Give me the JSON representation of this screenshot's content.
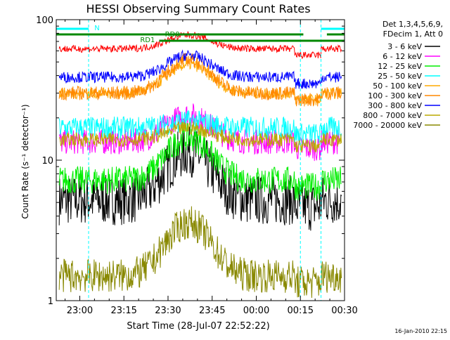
{
  "chart_data": {
    "type": "line",
    "title": "HESSI Observing Summary Count Rates",
    "xlabel": "Start Time (28-Jul-07 22:52:22)",
    "ylabel": "Count Rate (s⁻¹ detector⁻¹)",
    "yscale": "log",
    "ylim": [
      1,
      100
    ],
    "xlim_minutes_after_23_00": [
      -8,
      33
    ],
    "x_ticks": [
      {
        "t": 0,
        "label": "23:00"
      },
      {
        "t": 15,
        "label": "23:15"
      },
      {
        "t": 30,
        "label": "23:30"
      },
      {
        "t": 45,
        "label": "23:45"
      },
      {
        "t": 60,
        "label": "00:00"
      },
      {
        "t": 75,
        "label": "00:15"
      },
      {
        "t": 90,
        "label": "00:30"
      }
    ],
    "y_ticks": [
      {
        "v": 1,
        "label": "1"
      },
      {
        "v": 10,
        "label": "10"
      },
      {
        "v": 100,
        "label": "100"
      }
    ],
    "legend_header": [
      "Det 1,3,4,5,6,9,",
      "FDecim 1, Att 0"
    ],
    "legend_position": "right",
    "series": [
      {
        "name": "3 - 6 keV",
        "color": "#000000",
        "level": "low",
        "base": 5.2,
        "peak": 11.5,
        "noise": 0.18
      },
      {
        "name": "6 - 12 keV",
        "color": "#ff00ff",
        "level": "mid",
        "base": 13.5,
        "peak": 21,
        "noise": 0.09
      },
      {
        "name": "12 - 25 keV",
        "color": "#00ee00",
        "level": "mid",
        "base": 7.2,
        "peak": 14.5,
        "noise": 0.1
      },
      {
        "name": "25 - 50 keV",
        "color": "#00ffff",
        "level": "mid",
        "base": 17,
        "peak": 19,
        "noise": 0.08
      },
      {
        "name": "50 - 100 keV",
        "color": "#ffaa00",
        "level": "mid",
        "base": 30,
        "peak": 48,
        "noise": 0.04
      },
      {
        "name": "100 - 300 keV",
        "color": "#ff8800",
        "level": "mid",
        "base": 30,
        "peak": 52,
        "noise": 0.05
      },
      {
        "name": "300 - 800 keV",
        "color": "#0000ff",
        "level": "mid",
        "base": 39,
        "peak": 56,
        "noise": 0.04
      },
      {
        "name": "800 - 7000 keV",
        "color": "#bbaa00",
        "level": "mid",
        "base": 14,
        "peak": 17,
        "noise": 0.05
      },
      {
        "name": "7000 - 20000 keV",
        "color": "#888800",
        "level": "low",
        "base": 1.5,
        "peak": 3.6,
        "noise": 0.12
      }
    ],
    "top_series_color": "#ff0000",
    "top_series": {
      "base": 62,
      "peak": 78
    },
    "flags": [
      {
        "label": "N",
        "color": "#00ffff"
      },
      {
        "label": "RD0",
        "color": "#008800"
      },
      {
        "label": "RD1",
        "color": "#008800"
      }
    ],
    "vertical_markers_minutes": [
      -8,
      3,
      75,
      82,
      90
    ],
    "footer_date": "16-Jan-2010 22:15"
  }
}
